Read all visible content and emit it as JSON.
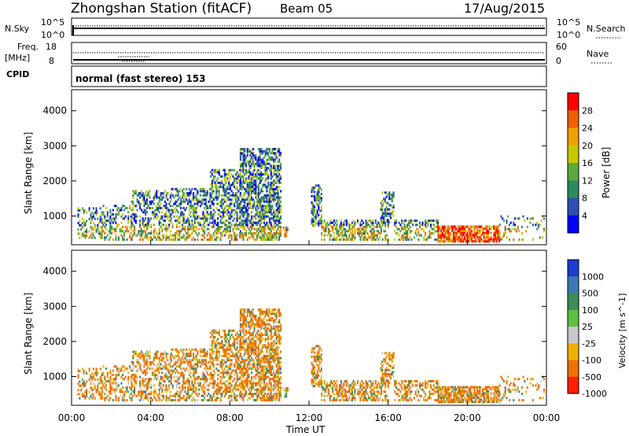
{
  "header": {
    "station_title": "Zhongshan Station (fitACF)",
    "beam": "Beam 05",
    "date": "17/Aug/2015"
  },
  "strip1": {
    "left_label": "N.Sky",
    "left_ticks": [
      "10^5",
      "10^0"
    ],
    "right_label": "N.Search",
    "right_ticks": [
      "10^5",
      "10^0"
    ]
  },
  "strip2": {
    "left_label_1": "Freq.",
    "left_label_2": "[MHz]",
    "left_ticks": [
      "18",
      "8"
    ],
    "right_label": "Nave",
    "right_ticks": [
      "60",
      "0"
    ],
    "cpid_label": "CPID",
    "mode_text": "normal (fast stereo) 153"
  },
  "chart_data": [
    {
      "type": "heatmap",
      "panel": "power",
      "ylabel": "Slant Range [km]",
      "ylim": [
        180,
        4600
      ],
      "yticks": [
        "1000",
        "2000",
        "3000",
        "4000"
      ],
      "colorbar_label": "Power [dB]",
      "colorbar_ticks": [
        "4",
        "8",
        "12",
        "16",
        "20",
        "24",
        "28"
      ],
      "colorbar_colors": [
        "#0000ff",
        "#2e4fb0",
        "#2e8a60",
        "#5aa83c",
        "#c8c800",
        "#f0a000",
        "#f06000",
        "#ff0000"
      ]
    },
    {
      "type": "heatmap",
      "panel": "velocity",
      "ylabel": "Slant Range [km]",
      "ylim": [
        180,
        4600
      ],
      "yticks": [
        "1000",
        "2000",
        "3000",
        "4000"
      ],
      "colorbar_label": "Velocity [m s^-1]",
      "colorbar_ticks": [
        "1000",
        "500",
        "100",
        "25",
        "-25",
        "-100",
        "-500",
        "-1000"
      ],
      "colorbar_colors": [
        "#1c3fd0",
        "#3a7ab0",
        "#3e8c58",
        "#5cc040",
        "#c8c8c8",
        "#f0b000",
        "#f07000",
        "#ff2000"
      ],
      "xlabel": "Time UT",
      "xticks": [
        "00:00",
        "04:00",
        "08:00",
        "12:00",
        "16:00",
        "20:00",
        "00:00"
      ]
    }
  ]
}
